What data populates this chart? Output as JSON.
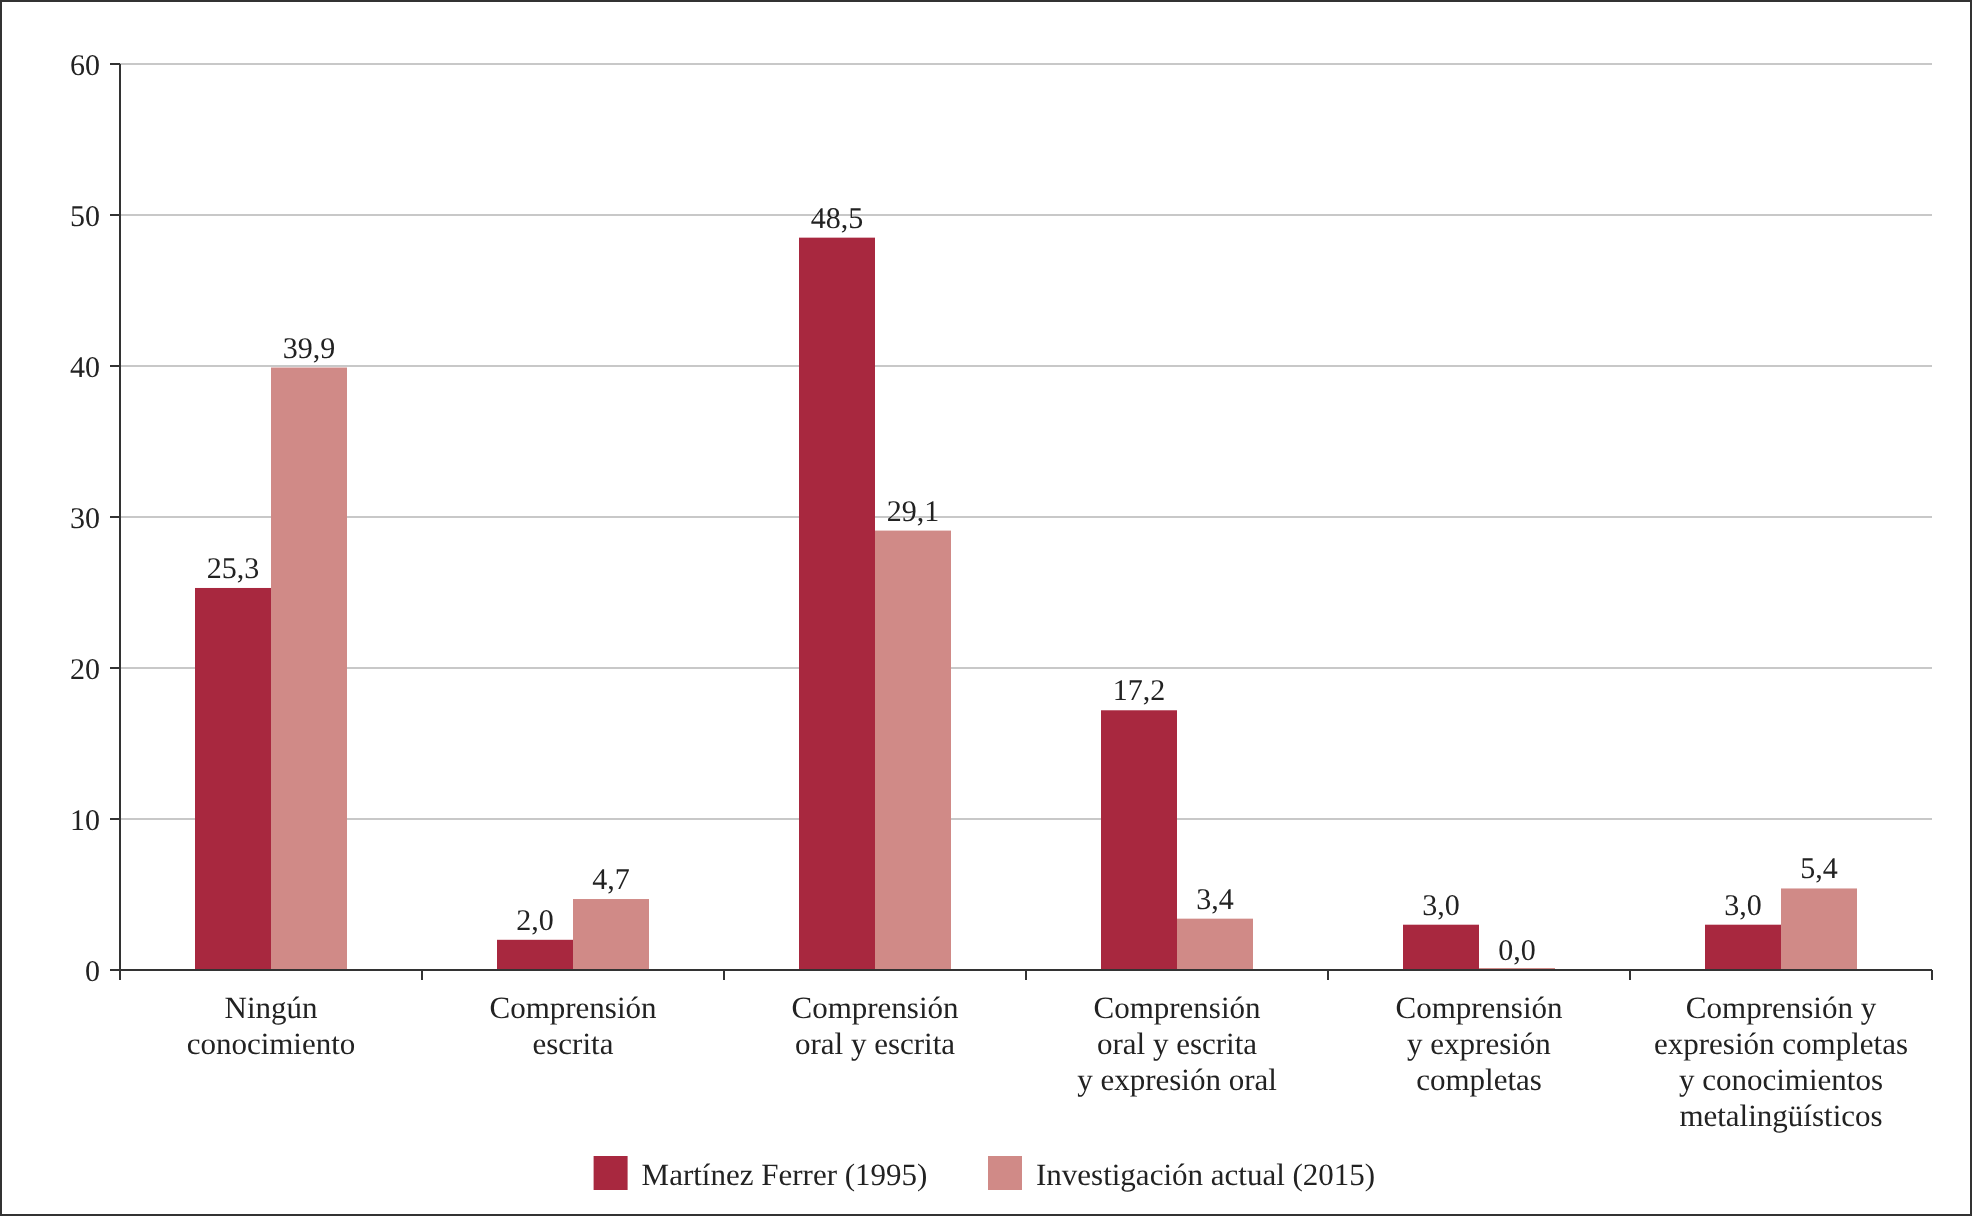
{
  "chart_data": {
    "type": "bar",
    "categories": [
      "Ningún\nconocimiento",
      "Comprensión\nescrita",
      "Comprensión\noral y escrita",
      "Comprensión\noral y escrita\ny expresión oral",
      "Comprensión\ny expresión\ncompletas",
      "Comprensión y\nexpresión completas\ny conocimientos\nmetalingüísticos"
    ],
    "series": [
      {
        "name": "Martínez Ferrer (1995)",
        "color": "#a8283f",
        "values": [
          25.3,
          2.0,
          48.5,
          17.2,
          3.0,
          3.0
        ],
        "value_labels": [
          "25,3",
          "2,0",
          "48,5",
          "17,2",
          "3,0",
          "3,0"
        ]
      },
      {
        "name": "Investigación actual (2015)",
        "color": "#d08a87",
        "values": [
          39.9,
          4.7,
          29.1,
          3.4,
          0.0,
          5.4
        ],
        "value_labels": [
          "39,9",
          "4,7",
          "29,1",
          "3,4",
          "0,0",
          "5,4"
        ]
      }
    ],
    "ylim": [
      0,
      60
    ],
    "yticks": [
      0,
      10,
      20,
      30,
      40,
      50,
      60
    ],
    "grid": "y",
    "legend": "bottom"
  }
}
